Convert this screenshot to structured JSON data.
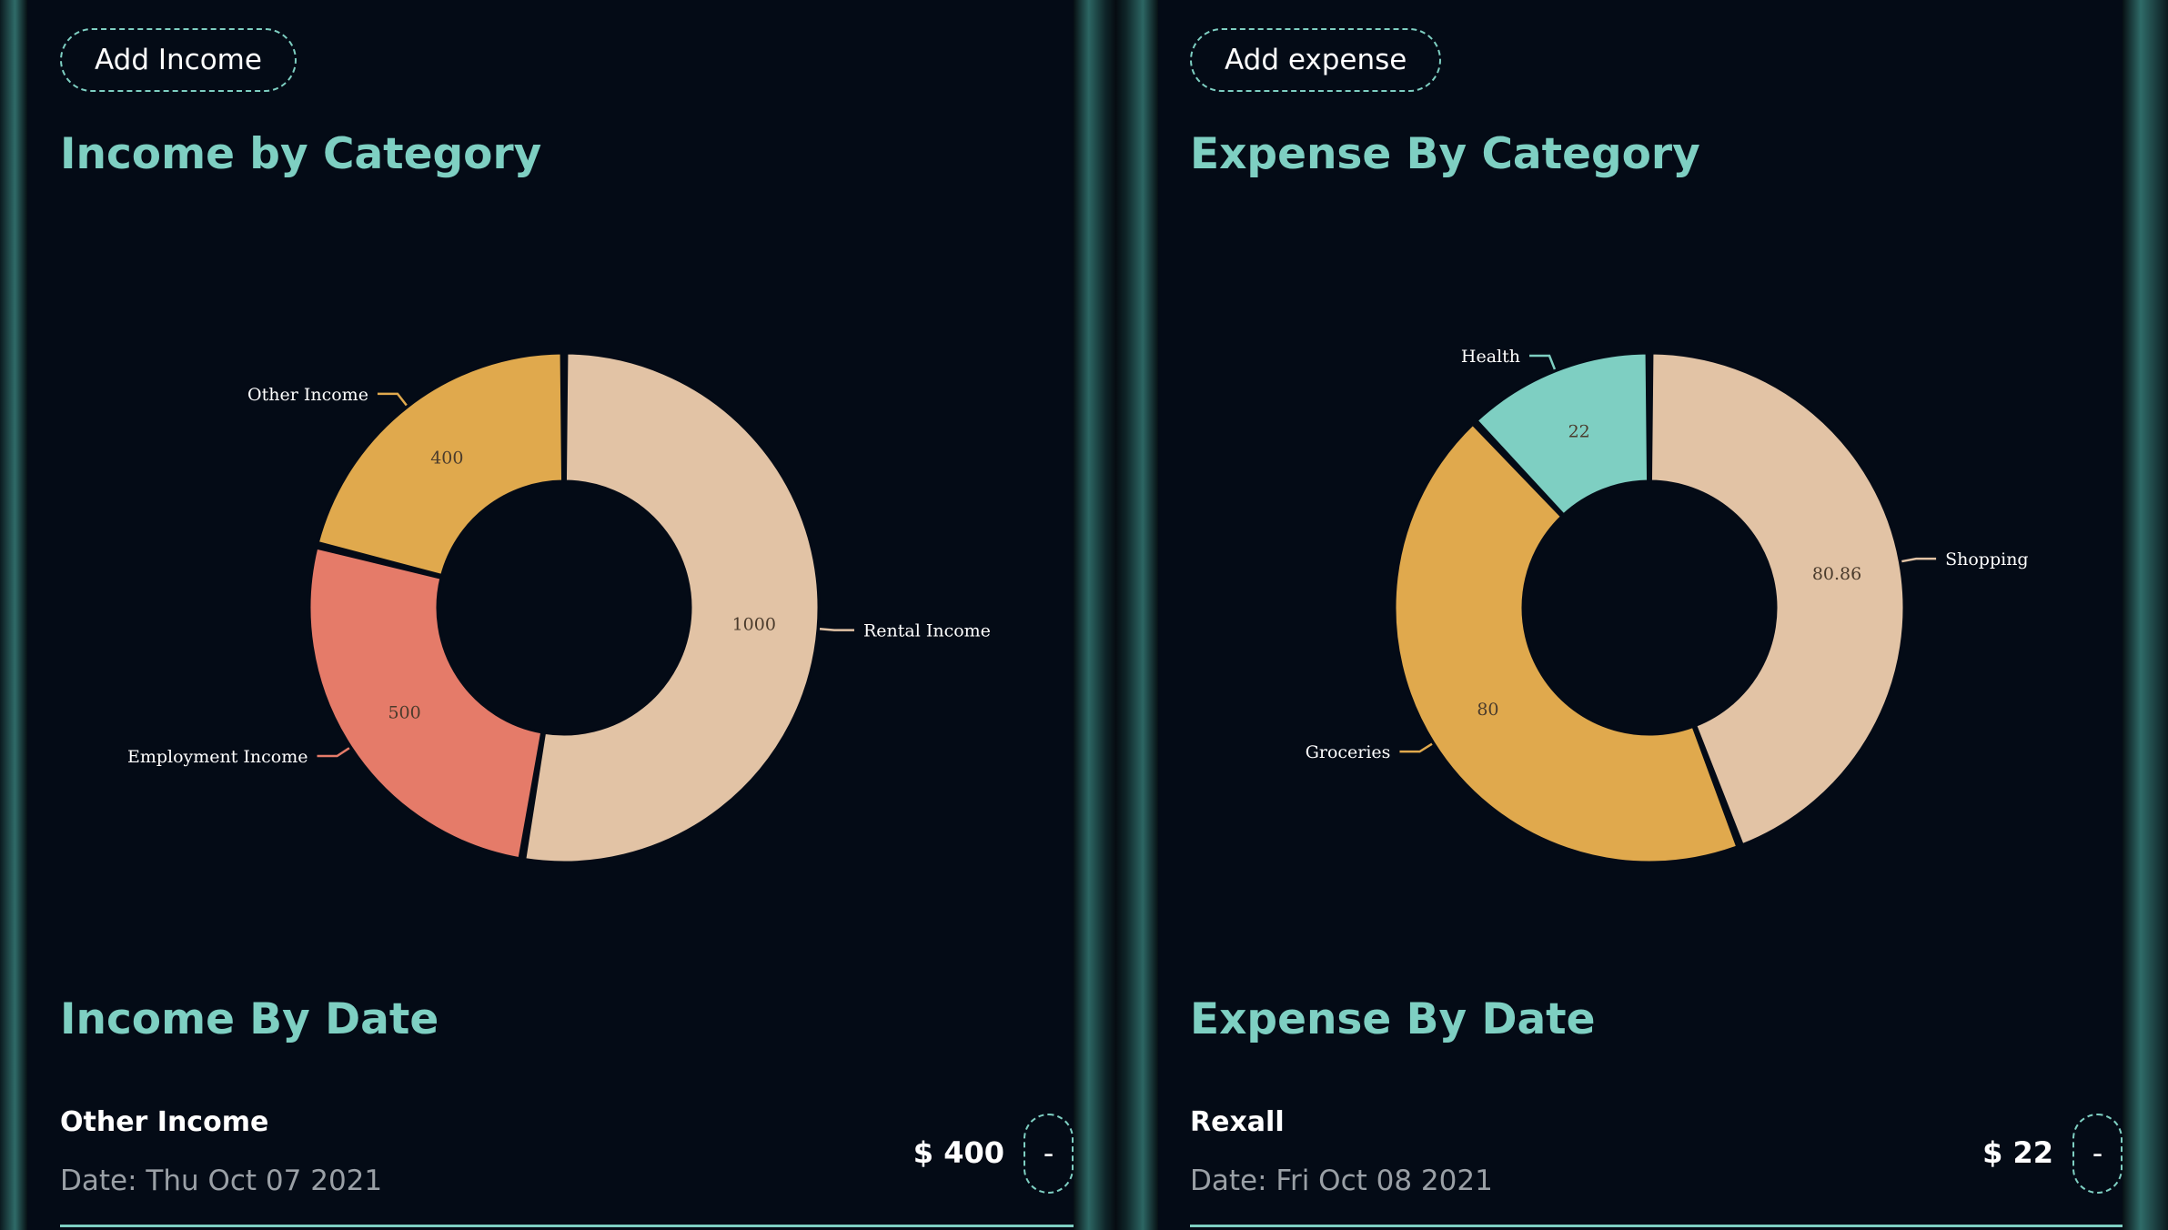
{
  "income": {
    "add_button_label": "Add Income",
    "chart_title": "Income by Category",
    "by_date_title": "Income By Date",
    "transaction": {
      "name": "Other Income",
      "date": "Date: Thu Oct 07 2021",
      "amount": "$ 400",
      "remove_label": "-"
    }
  },
  "expense": {
    "add_button_label": "Add expense",
    "chart_title": "Expense By Category",
    "by_date_title": "Expense By Date",
    "transaction": {
      "name": "Rexall",
      "date": "Date: Fri Oct 08 2021",
      "amount": "$ 22",
      "remove_label": "-"
    }
  },
  "chart_data": [
    {
      "type": "pie",
      "title": "Income by Category",
      "donut": true,
      "categories": [
        "Rental Income",
        "Employment Income",
        "Other Income"
      ],
      "values": [
        1000,
        500,
        400
      ],
      "value_labels": [
        "1000",
        "500",
        "400"
      ],
      "colors": [
        "#e2c3a5",
        "#e57b69",
        "#e0a94d"
      ]
    },
    {
      "type": "pie",
      "title": "Expense By Category",
      "donut": true,
      "categories": [
        "Shopping",
        "Groceries",
        "Health"
      ],
      "values": [
        80.86,
        80,
        22
      ],
      "value_labels": [
        "80.86",
        "80",
        "22"
      ],
      "colors": [
        "#e2c3a5",
        "#e0a94d",
        "#7ecfc2"
      ]
    }
  ]
}
